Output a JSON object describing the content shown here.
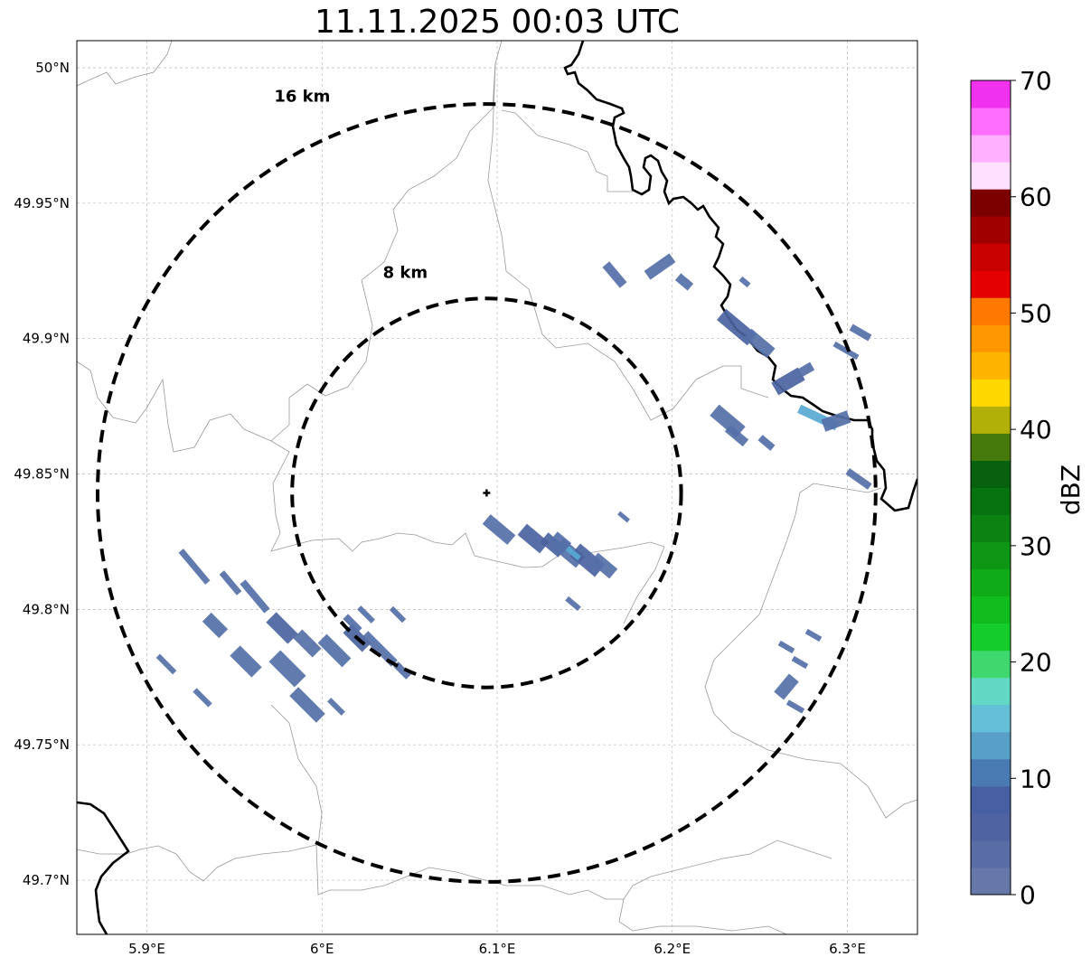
{
  "title": "11.11.2025 00:03 UTC",
  "map": {
    "lon_range": [
      5.86,
      6.34
    ],
    "lat_range": [
      49.68,
      50.01
    ],
    "x_ticks": [
      {
        "value": 5.9,
        "label": "5.9°E"
      },
      {
        "value": 6.0,
        "label": "6°E"
      },
      {
        "value": 6.1,
        "label": "6.1°E"
      },
      {
        "value": 6.2,
        "label": "6.2°E"
      },
      {
        "value": 6.3,
        "label": "6.3°E"
      }
    ],
    "y_ticks": [
      {
        "value": 50.0,
        "label": "50°N"
      },
      {
        "value": 49.95,
        "label": "49.95°N"
      },
      {
        "value": 49.9,
        "label": "49.9°N"
      },
      {
        "value": 49.85,
        "label": "49.85°N"
      },
      {
        "value": 49.8,
        "label": "49.8°N"
      },
      {
        "value": 49.75,
        "label": "49.75°N"
      },
      {
        "value": 49.7,
        "label": "49.7°N"
      }
    ],
    "radar_center": {
      "lon": 6.094,
      "lat": 49.843
    },
    "range_rings": [
      {
        "label": "8 km",
        "radius_km": 8
      },
      {
        "label": "16 km",
        "radius_km": 16
      }
    ]
  },
  "colorbar": {
    "label": "dBZ",
    "ticks": [
      "0",
      "10",
      "20",
      "30",
      "40",
      "50",
      "60",
      "70"
    ],
    "min": 0,
    "max": 70,
    "step": 2.5,
    "colors": [
      "#6678aa",
      "#5a6ca5",
      "#4f63a3",
      "#4760a4",
      "#4a7ab2",
      "#58a0c8",
      "#63c0d8",
      "#62d8c4",
      "#3ed86e",
      "#14cc2c",
      "#10bc1e",
      "#10ac18",
      "#0e9714",
      "#0c8212",
      "#077210",
      "#08610e",
      "#477a0c",
      "#b0b008",
      "#ffd800",
      "#ffb400",
      "#ff9800",
      "#ff7800",
      "#e40000",
      "#c80000",
      "#a00000",
      "#7c0000",
      "#ffe0ff",
      "#ffb0ff",
      "#ff6eff",
      "#f032ee"
    ]
  },
  "echo_colors": {
    "low": "#5570a8",
    "mid": "#4a63a0",
    "high": "#58a8d4"
  }
}
